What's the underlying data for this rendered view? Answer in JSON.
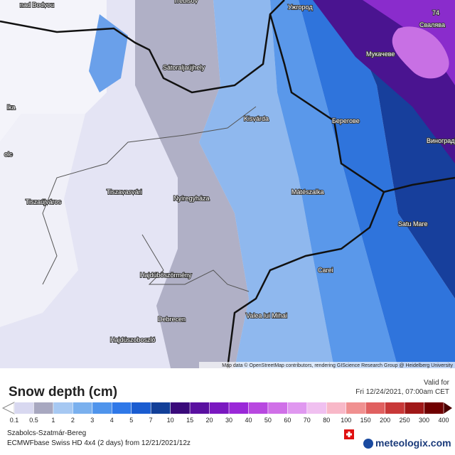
{
  "map": {
    "places": [
      "nad Bodvou",
      "Trebišov",
      "Ужгород",
      "Свалява",
      "Мукачеве",
      "Sátoraljaújhely",
      "Kisvárda",
      "Берегове",
      "Виноградів",
      "Mátészalka",
      "Tiszavasvári",
      "Nyíregyháza",
      "Tiszaújváros",
      "Satu Mare",
      "Carei",
      "Hajdúböszörmény",
      "Debrecen",
      "Valea lui Mihai",
      "Hajdúszoboszló",
      "lka",
      "olc",
      "74"
    ],
    "attribution": "Map data © OpenStreetMap contributors, rendering GIScience Research Group @ Heidelberg University"
  },
  "legend": {
    "title": "Snow depth (cm)",
    "valid_label": "Valid for",
    "valid_time": "Fri 12/24/2021, 07:00am CET",
    "ticks": [
      "0.1",
      "0.5",
      "1",
      "2",
      "3",
      "4",
      "5",
      "7",
      "10",
      "15",
      "20",
      "30",
      "40",
      "50",
      "60",
      "70",
      "80",
      "100",
      "150",
      "200",
      "250",
      "300",
      "400"
    ]
  },
  "footer": {
    "region": "Szabolcs-Szatmár-Bereg",
    "model": "ECMWFbase Swiss HD 4x4 (2 days) from 12/21/2021/12z",
    "brand": "meteologix.com"
  }
}
